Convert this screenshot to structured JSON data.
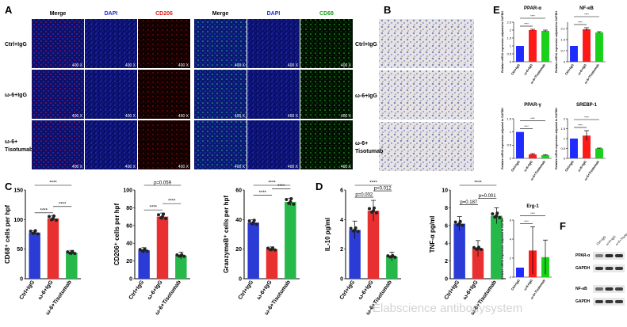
{
  "panels": {
    "A": {
      "letter": "A",
      "col_headers": [
        "Merge",
        "DAPI",
        "CD206",
        "Merge",
        "DAPI",
        "CD68"
      ],
      "col_colors": [
        "#000000",
        "#1f2bd6",
        "#e02020",
        "#000000",
        "#1f2bd6",
        "#1ea01e"
      ],
      "row_labels": [
        "Ctrl+IgG",
        "ω-6+IgG",
        "ω-6+ Tisotumab"
      ],
      "magnification": "400 X"
    },
    "B": {
      "letter": "B",
      "row_labels": [
        "Ctrl+IgG",
        "ω-6+IgG",
        "ω-6+ Tisotumab"
      ]
    },
    "C": {
      "letter": "C"
    },
    "D": {
      "letter": "D"
    },
    "E": {
      "letter": "E"
    },
    "F": {
      "letter": "F",
      "lanes": [
        "Ctrl+IgG",
        "ω-6+IgG",
        "ω-6+Tisotumab"
      ],
      "blots": [
        "PPAR-α",
        "GAPDH",
        "NF-κB",
        "GAPDH"
      ],
      "band_intensity": [
        [
          0.45,
          0.95,
          0.9
        ],
        [
          0.85,
          0.85,
          0.85
        ],
        [
          0.55,
          0.9,
          0.8
        ],
        [
          0.85,
          0.85,
          0.85
        ]
      ]
    }
  },
  "watermark": "Elabscience antibodysystem",
  "chart_data": [
    {
      "id": "C1",
      "type": "bar",
      "categories": [
        "Ctrl+IgG",
        "ω-6+IgG",
        "ω-6+Tisotumab"
      ],
      "values": [
        78,
        102,
        44
      ],
      "errors": [
        3,
        4,
        4
      ],
      "colors": [
        "#2b3cd6",
        "#e83030",
        "#27b84a"
      ],
      "ylabel": "CD68⁺ cells per hpf",
      "ylim": [
        0,
        150
      ],
      "yticks": [
        0,
        50,
        100,
        150
      ],
      "annotations": [
        "****",
        "****",
        "****"
      ]
    },
    {
      "id": "C2",
      "type": "bar",
      "categories": [
        "Ctrl+IgG",
        "ω-6+IgG",
        "ω-6+Tisotumab"
      ],
      "values": [
        32,
        70,
        26
      ],
      "errors": [
        3,
        4,
        4
      ],
      "colors": [
        "#2b3cd6",
        "#e83030",
        "#27b84a"
      ],
      "ylabel": "CD206⁺ cells per hpf",
      "ylim": [
        0,
        100
      ],
      "yticks": [
        0,
        20,
        40,
        60,
        80,
        100
      ],
      "annotations": [
        "****",
        "****",
        "p=0.059"
      ]
    },
    {
      "id": "C3",
      "type": "bar",
      "categories": [
        "Ctrl+IgG",
        "ω-6+IgG",
        "ω-6+Tisotumab"
      ],
      "values": [
        38,
        20,
        52
      ],
      "errors": [
        2,
        1.5,
        2.5
      ],
      "colors": [
        "#2b3cd6",
        "#e83030",
        "#27b84a"
      ],
      "ylabel": "GranzymeB⁺ cells per hpf",
      "ylim": [
        0,
        60
      ],
      "yticks": [
        0,
        20,
        40,
        60
      ],
      "annotations": [
        "****",
        "****",
        "****"
      ]
    },
    {
      "id": "D1",
      "type": "bar",
      "categories": [
        "Ctrl+IgG",
        "ω-6+IgG",
        "ω-6+Tisotumab"
      ],
      "values": [
        3.3,
        4.6,
        1.5
      ],
      "errors": [
        0.6,
        0.7,
        0.3
      ],
      "colors": [
        "#2b3cd6",
        "#e83030",
        "#27b84a"
      ],
      "ylabel": "IL-10 pg/ml",
      "ylim": [
        0,
        6
      ],
      "yticks": [
        0,
        2,
        4,
        6
      ],
      "annotations": [
        "p=0.002",
        "p=0.012",
        "****"
      ]
    },
    {
      "id": "D2",
      "type": "bar",
      "categories": [
        "Ctrl+IgG",
        "ω-6+IgG",
        "ω-6+Tisotumab"
      ],
      "values": [
        6.2,
        3.4,
        7.1
      ],
      "errors": [
        0.8,
        0.9,
        0.9
      ],
      "colors": [
        "#2b3cd6",
        "#e83030",
        "#27b84a"
      ],
      "ylabel": "TNF-α pg/ml",
      "ylim": [
        0,
        10
      ],
      "yticks": [
        0,
        2,
        4,
        6,
        8,
        10
      ],
      "annotations": [
        "p=0.187",
        "p=0.001",
        "****"
      ]
    },
    {
      "id": "E1",
      "type": "bar",
      "title": "PPAR-α",
      "categories": [
        "Ctrl+IgG",
        "ω-6+IgG",
        "ω-6+Tisotumab"
      ],
      "values": [
        1.0,
        2.0,
        1.95
      ],
      "errors": [
        0,
        0.05,
        0.05
      ],
      "colors": [
        "#1f2bff",
        "#ff1a1a",
        "#1ad11a"
      ],
      "ylabel": "Relative mRNA expression adjusted to GAPDH",
      "ylim": [
        0,
        2.5
      ],
      "yticks": [
        0,
        0.5,
        1.0,
        1.5,
        2.0,
        2.5
      ],
      "annotations": [
        "****",
        "****"
      ]
    },
    {
      "id": "E2",
      "type": "bar",
      "title": "NF-κB",
      "categories": [
        "Ctrl+IgG",
        "ω-6+IgG",
        "ω-6+Tisotumab"
      ],
      "values": [
        1.0,
        2.05,
        1.85
      ],
      "errors": [
        0,
        0.1,
        0.05
      ],
      "colors": [
        "#1f2bff",
        "#ff1a1a",
        "#1ad11a"
      ],
      "ylabel": "Relative mRNA expression adjusted to GAPDH",
      "ylim": [
        0,
        2.5
      ],
      "yticks": [
        0,
        0.7,
        1.4,
        2.1
      ],
      "annotations": [
        "****",
        "****"
      ]
    },
    {
      "id": "E3",
      "type": "bar",
      "title": "PPAR-γ",
      "categories": [
        "Ctrl+IgG",
        "ω-6+IgG",
        "ω-6+Tisotumab"
      ],
      "values": [
        1.0,
        0.15,
        0.12
      ],
      "errors": [
        0,
        0.03,
        0.02
      ],
      "colors": [
        "#1f2bff",
        "#ff1a1a",
        "#1ad11a"
      ],
      "ylabel": "Relative mRNA expression adjusted to GAPDH",
      "ylim": [
        0,
        1.5
      ],
      "yticks": [
        0,
        0.5,
        1.0,
        1.5
      ],
      "annotations": [
        "****",
        "****"
      ]
    },
    {
      "id": "E4",
      "type": "bar",
      "title": "SREBP-1",
      "categories": [
        "Ctrl+IgG",
        "ω-6+IgG",
        "ω-6+Tisotumab"
      ],
      "values": [
        1.0,
        1.15,
        0.5
      ],
      "errors": [
        0,
        0.25,
        0.02
      ],
      "colors": [
        "#1f2bff",
        "#ff1a1a",
        "#1ad11a"
      ],
      "ylabel": "Relative mRNA expression adjusted to GAPDH",
      "ylim": [
        0,
        2.0
      ],
      "yticks": [
        0,
        0.5,
        1.0,
        1.5,
        2.0
      ],
      "annotations": [
        "****",
        "****"
      ]
    },
    {
      "id": "E5",
      "type": "bar",
      "title": "Erg-1",
      "categories": [
        "Ctrl+IgG",
        "ω-6+IgG",
        "ω-6+Tisotumab"
      ],
      "values": [
        1.0,
        2.8,
        2.1
      ],
      "errors": [
        0,
        2.5,
        1.8
      ],
      "colors": [
        "#1f2bff",
        "#ff1a1a",
        "#1ad11a"
      ],
      "ylabel": "Relative mRNA expression adjusted to GAPDH",
      "ylim": [
        0,
        6
      ],
      "yticks": [
        0,
        2,
        4,
        6
      ],
      "annotations": [
        "****",
        "****"
      ]
    }
  ]
}
